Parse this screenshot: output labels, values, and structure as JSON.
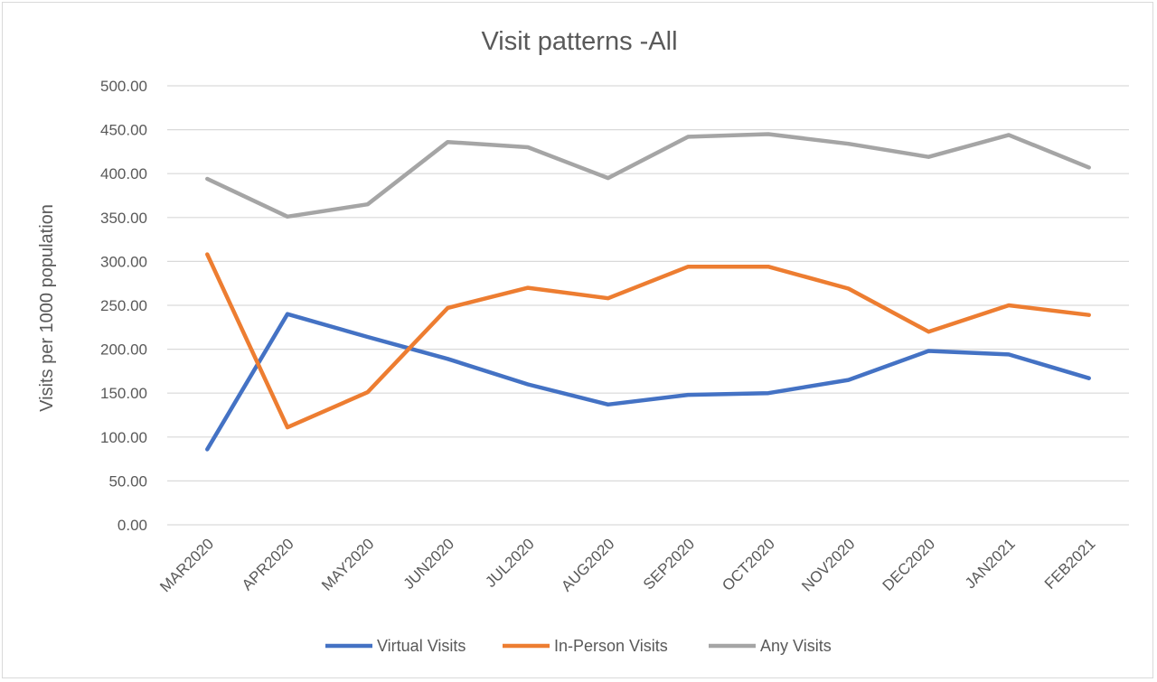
{
  "chart_data": {
    "type": "line",
    "title": "Visit patterns -All",
    "xlabel": "",
    "ylabel": "Visits per 1000 population",
    "categories": [
      "MAR2020",
      "APR2020",
      "MAY2020",
      "JUN2020",
      "JUL2020",
      "AUG2020",
      "SEP2020",
      "OCT2020",
      "NOV2020",
      "DEC2020",
      "JAN2021",
      "FEB2021"
    ],
    "ylim": [
      0,
      500
    ],
    "yticks": [
      "0.00",
      "50.00",
      "100.00",
      "150.00",
      "200.00",
      "250.00",
      "300.00",
      "350.00",
      "400.00",
      "450.00",
      "500.00"
    ],
    "grid": true,
    "legend_position": "bottom",
    "series": [
      {
        "name": "Virtual Visits",
        "color": "#4472C4",
        "values": [
          86,
          240,
          214,
          189,
          160,
          137,
          148,
          150,
          165,
          198,
          194,
          167
        ]
      },
      {
        "name": "In-Person Visits",
        "color": "#ED7D31",
        "values": [
          308,
          111,
          151,
          247,
          270,
          258,
          294,
          294,
          269,
          220,
          250,
          239
        ]
      },
      {
        "name": "Any Visits",
        "color": "#A5A5A5",
        "values": [
          394,
          351,
          365,
          436,
          430,
          395,
          442,
          445,
          434,
          419,
          444,
          407
        ]
      }
    ]
  }
}
